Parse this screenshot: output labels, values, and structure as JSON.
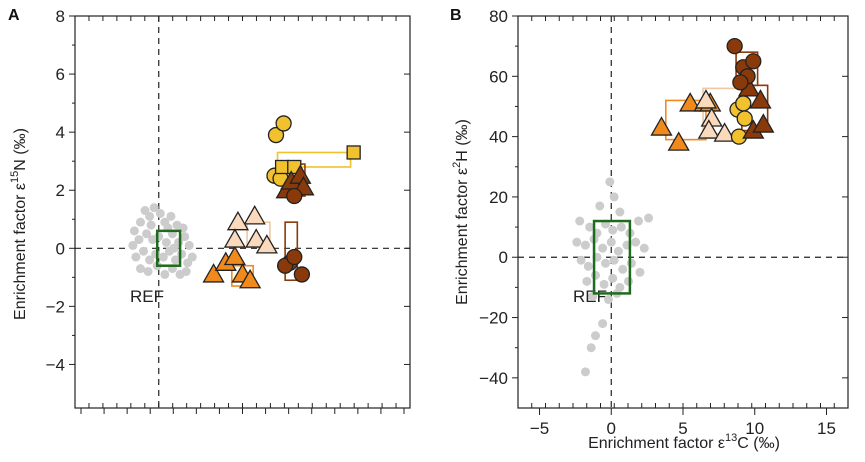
{
  "colors": {
    "ref_box": "#1e6b1e",
    "gray_points": "#cccccc",
    "frame": "#222222",
    "orange": "#f08a1c",
    "peach": "#fbd9bd",
    "yellow": "#f2c12e",
    "brown": "#8a3a0a",
    "dark_brown": "#6e2e08",
    "light_orange_line": "#e8a24a"
  },
  "chart_data": [
    {
      "type": "scatter",
      "panel_label": "A",
      "ylabel_prefix": "Enrichment factor  ε",
      "ylabel_sup": "15",
      "ylabel_suffix": "N (‰)",
      "xlabel": "",
      "ylim": [
        -5.5,
        8
      ],
      "yticks": [
        -4,
        -2,
        0,
        2,
        4,
        6,
        8
      ],
      "ytick_labels": [
        "−4",
        "−2",
        "0",
        "2",
        "4",
        "6",
        "8"
      ],
      "xlim": [
        -5.5,
        16.5
      ],
      "ref_label": "REF",
      "ref_box": {
        "x": [
          -0.1,
          1.4
        ],
        "y": [
          -0.6,
          0.6
        ]
      },
      "gray_points": [
        [
          -1.6,
          0.6
        ],
        [
          -1.2,
          0.9
        ],
        [
          -0.9,
          1.3
        ],
        [
          -0.6,
          1.1
        ],
        [
          -0.3,
          1.4
        ],
        [
          0.1,
          1.2
        ],
        [
          0.4,
          0.9
        ],
        [
          0.8,
          1.1
        ],
        [
          1.2,
          0.8
        ],
        [
          1.6,
          0.7
        ],
        [
          -1.7,
          0.1
        ],
        [
          -1.3,
          0.3
        ],
        [
          -0.8,
          0.5
        ],
        [
          -0.4,
          0.3
        ],
        [
          0.0,
          0.4
        ],
        [
          0.5,
          0.2
        ],
        [
          0.9,
          0.5
        ],
        [
          1.3,
          0.2
        ],
        [
          1.7,
          0.4
        ],
        [
          2.0,
          0.1
        ],
        [
          -1.5,
          -0.3
        ],
        [
          -1.0,
          -0.1
        ],
        [
          -0.6,
          -0.4
        ],
        [
          -0.2,
          -0.2
        ],
        [
          0.3,
          -0.3
        ],
        [
          0.7,
          -0.1
        ],
        [
          1.1,
          -0.4
        ],
        [
          1.5,
          -0.2
        ],
        [
          1.9,
          -0.5
        ],
        [
          2.2,
          -0.3
        ],
        [
          -1.2,
          -0.7
        ],
        [
          -0.7,
          -0.8
        ],
        [
          -0.1,
          -0.6
        ],
        [
          0.4,
          -0.9
        ],
        [
          0.9,
          -0.7
        ],
        [
          1.4,
          -0.9
        ],
        [
          1.8,
          -0.8
        ],
        [
          -0.5,
          0.8
        ],
        [
          0.6,
          0.7
        ],
        [
          1.0,
          0.0
        ]
      ],
      "groups": [
        {
          "name": "orange",
          "color": "#f08a1c",
          "marker": "triangle",
          "points": [
            [
              3.6,
              -0.9
            ],
            [
              4.4,
              -0.5
            ],
            [
              5.0,
              -0.3
            ],
            [
              5.5,
              -0.9
            ],
            [
              6.0,
              -1.1
            ]
          ],
          "box": {
            "x": [
              4.8,
              6.2
            ],
            "y": [
              -1.3,
              -0.6
            ]
          }
        },
        {
          "name": "peach",
          "color": "#fbd9bd",
          "marker": "triangle",
          "points": [
            [
              6.3,
              1.1
            ],
            [
              5.2,
              0.9
            ],
            [
              5.0,
              0.3
            ],
            [
              6.4,
              0.3
            ],
            [
              7.1,
              0.1
            ]
          ],
          "box": {
            "x": [
              5.8,
              7.3
            ],
            "y": [
              0.1,
              0.9
            ]
          }
        },
        {
          "name": "yellow-circles",
          "color": "#f2c12e",
          "marker": "circle",
          "points": [
            [
              7.7,
              3.9
            ],
            [
              8.2,
              4.3
            ],
            [
              7.6,
              2.5
            ],
            [
              8.0,
              2.4
            ]
          ]
        },
        {
          "name": "yellow-squares",
          "color": "#f2c12e",
          "marker": "square",
          "points": [
            [
              8.1,
              2.8
            ],
            [
              8.9,
              2.8
            ],
            [
              12.8,
              3.3
            ]
          ],
          "box": {
            "x": [
              7.8,
              12.6
            ],
            "y": [
              2.8,
              3.3
            ]
          }
        },
        {
          "name": "brown-triangles",
          "color": "#8a3a0a",
          "marker": "triangle",
          "points": [
            [
              8.4,
              2.0
            ],
            [
              8.7,
              2.3
            ],
            [
              9.3,
              2.5
            ],
            [
              9.5,
              2.1
            ]
          ],
          "box": {
            "x": [
              8.3,
              9.6
            ],
            "y": [
              1.8,
              2.9
            ]
          }
        },
        {
          "name": "brown-circles",
          "color": "#8a3a0a",
          "marker": "circle",
          "points": [
            [
              8.9,
              1.8
            ],
            [
              8.6,
              -0.5
            ],
            [
              8.3,
              -0.6
            ],
            [
              9.4,
              -0.9
            ],
            [
              8.9,
              -0.3
            ]
          ],
          "box": {
            "x": [
              8.3,
              9.1
            ],
            "y": [
              -1.1,
              0.9
            ]
          }
        }
      ]
    },
    {
      "type": "scatter",
      "panel_label": "B",
      "ylabel_prefix": "Enrichment factor  ε",
      "ylabel_sup": "2",
      "ylabel_suffix": "H (‰)",
      "xlabel_prefix": "Enrichment factor  ε",
      "xlabel_sup": "13",
      "xlabel_suffix": "C (‰)",
      "xlim": [
        -6.5,
        16.5
      ],
      "ylim": [
        -50,
        80
      ],
      "xticks": [
        -5,
        0,
        5,
        10,
        15
      ],
      "xtick_labels": [
        "−5",
        "0",
        "5",
        "10",
        "15"
      ],
      "yticks": [
        -40,
        -20,
        0,
        20,
        40,
        60,
        80
      ],
      "ytick_labels": [
        "−40",
        "−20",
        "0",
        "20",
        "40",
        "60",
        "80"
      ],
      "ref_label": "REF",
      "ref_box": {
        "x": [
          -1.2,
          1.3
        ],
        "y": [
          -12,
          12
        ]
      },
      "gray_points": [
        [
          -1.8,
          -38
        ],
        [
          -1.4,
          -30
        ],
        [
          -1.1,
          -26
        ],
        [
          -0.6,
          -22
        ],
        [
          -0.1,
          25
        ],
        [
          0.2,
          20
        ],
        [
          -0.8,
          17
        ],
        [
          0.6,
          15
        ],
        [
          -2.2,
          12
        ],
        [
          -1.5,
          10
        ],
        [
          -1.0,
          8
        ],
        [
          -0.4,
          11
        ],
        [
          0.1,
          9
        ],
        [
          0.7,
          10
        ],
        [
          1.3,
          8
        ],
        [
          1.9,
          12
        ],
        [
          2.6,
          13
        ],
        [
          -2.4,
          5
        ],
        [
          -1.8,
          4
        ],
        [
          -1.2,
          6
        ],
        [
          -0.6,
          3
        ],
        [
          0.0,
          5
        ],
        [
          0.5,
          2
        ],
        [
          1.1,
          4
        ],
        [
          1.7,
          5
        ],
        [
          2.3,
          3
        ],
        [
          -2.1,
          -1
        ],
        [
          -1.6,
          -3
        ],
        [
          -1.0,
          0
        ],
        [
          -0.4,
          -2
        ],
        [
          0.2,
          -1
        ],
        [
          0.8,
          -4
        ],
        [
          1.4,
          -2
        ],
        [
          2.0,
          -5
        ],
        [
          -1.7,
          -8
        ],
        [
          -1.1,
          -6
        ],
        [
          -0.5,
          -9
        ],
        [
          0.1,
          -7
        ],
        [
          0.6,
          -10
        ],
        [
          1.2,
          -8
        ],
        [
          -0.2,
          -14
        ],
        [
          0.4,
          -12
        ],
        [
          -1.3,
          -13
        ]
      ],
      "groups": [
        {
          "name": "orange",
          "color": "#f08a1c",
          "marker": "triangle",
          "points": [
            [
              3.5,
              43
            ],
            [
              4.7,
              38
            ],
            [
              5.5,
              51
            ],
            [
              6.5,
              51
            ],
            [
              6.9,
              51
            ]
          ],
          "box": {
            "x": [
              3.8,
              6.6
            ],
            "y": [
              39,
              52
            ]
          }
        },
        {
          "name": "peach",
          "color": "#fbd9bd",
          "marker": "triangle",
          "points": [
            [
              6.6,
              52
            ],
            [
              7.0,
              46
            ],
            [
              6.8,
              42
            ],
            [
              7.9,
              41
            ]
          ],
          "box": {
            "x": [
              6.4,
              9.1
            ],
            "y": [
              41,
              56
            ]
          }
        },
        {
          "name": "yellow-circles",
          "color": "#f2c12e",
          "marker": "circle",
          "points": [
            [
              8.8,
              49
            ],
            [
              9.2,
              51
            ],
            [
              8.9,
              40
            ],
            [
              9.3,
              46
            ]
          ]
        },
        {
          "name": "brown-triangles",
          "color": "#8a3a0a",
          "marker": "triangle",
          "points": [
            [
              9.9,
              42
            ],
            [
              9.6,
              56
            ],
            [
              10.4,
              52
            ],
            [
              10.6,
              44
            ]
          ],
          "box": {
            "x": [
              9.1,
              10.9
            ],
            "y": [
              42,
              57
            ]
          }
        },
        {
          "name": "brown-circles",
          "color": "#8a3a0a",
          "marker": "circle",
          "points": [
            [
              8.6,
              70
            ],
            [
              9.2,
              63
            ],
            [
              9.9,
              65
            ],
            [
              9.5,
              60
            ],
            [
              9.0,
              58
            ]
          ],
          "box": {
            "x": [
              8.7,
              10.2
            ],
            "y": [
              57,
              68
            ]
          }
        }
      ]
    }
  ]
}
